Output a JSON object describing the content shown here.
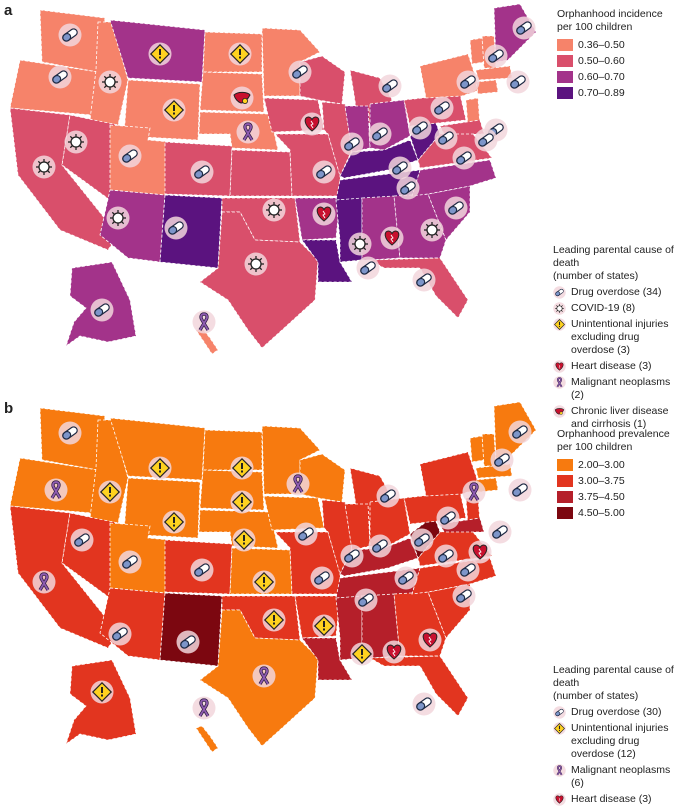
{
  "panel_a": {
    "letter": "a",
    "legend_title": "Orphanhood incidence\nper 100 children",
    "bins": [
      {
        "label": "0.36–0.50",
        "color": "#f6836a"
      },
      {
        "label": "0.50–0.60",
        "color": "#d94f6b"
      },
      {
        "label": "0.60–0.70",
        "color": "#a3338a"
      },
      {
        "label": "0.70–0.89",
        "color": "#5b137f"
      }
    ],
    "causes_title": "Leading parental cause of death\n(number of states)",
    "causes": [
      {
        "icon": "pill-icon",
        "label": "Drug overdose (34)"
      },
      {
        "icon": "virus-icon",
        "label": "COVID-19 (8)"
      },
      {
        "icon": "warning-icon",
        "label": "Unintentional injuries\nexcluding drug overdose (3)"
      },
      {
        "icon": "heart-icon",
        "label": "Heart disease (3)"
      },
      {
        "icon": "ribbon-icon",
        "label": "Malignant neoplasms (2)"
      },
      {
        "icon": "liver-icon",
        "label": "Chronic liver disease\nand cirrhosis (1)"
      }
    ]
  },
  "panel_b": {
    "letter": "b",
    "legend_title": "Orphanhood prevalence\nper 100 children",
    "bins": [
      {
        "label": "2.00–3.00",
        "color": "#f77a0f"
      },
      {
        "label": "3.00–3.75",
        "color": "#e2351f"
      },
      {
        "label": "3.75–4.50",
        "color": "#b51f2a"
      },
      {
        "label": "4.50–5.00",
        "color": "#7c0710"
      }
    ],
    "causes_title": "Leading parental cause of death\n(number of states)",
    "causes": [
      {
        "icon": "pill-icon",
        "label": "Drug overdose (30)"
      },
      {
        "icon": "warning-icon",
        "label": "Unintentional injuries\nexcluding drug overdose (12)"
      },
      {
        "icon": "ribbon-icon",
        "label": "Malignant neoplasms (6)"
      },
      {
        "icon": "heart-icon",
        "label": "Heart disease (3)"
      }
    ]
  }
}
